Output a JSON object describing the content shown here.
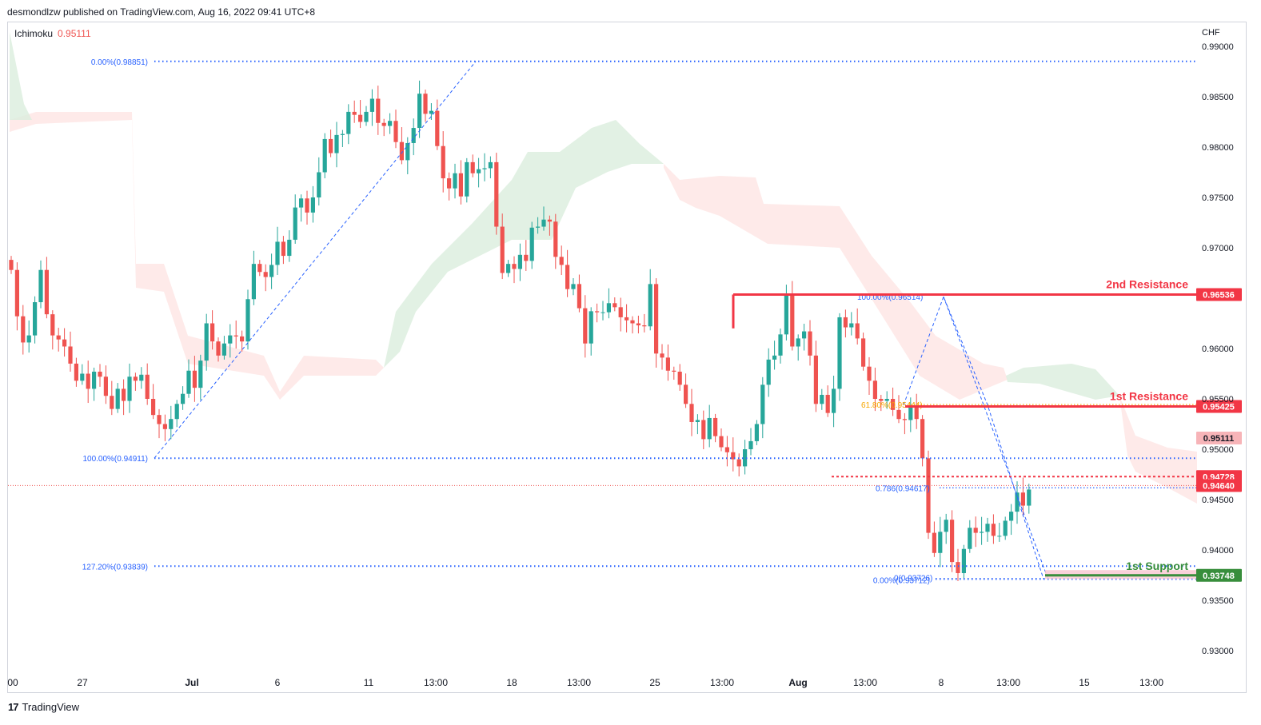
{
  "header": {
    "published": "desmondlzw published on TradingView.com, Aug 16, 2022 09:41 UTC+8",
    "indicator_name": "Ichimoku",
    "indicator_value": "0.95111",
    "currency": "CHF"
  },
  "footer": {
    "logo": "17",
    "brand": "TradingView"
  },
  "colors": {
    "up": "#26a69a",
    "down": "#ef5350",
    "cloud_bear": "#fde3e1",
    "cloud_bull": "#dbeedd",
    "fib": "#2962ff",
    "resistance": "#f23645",
    "support": "#388e3c",
    "fib_618": "#f7a600"
  },
  "chart_data": {
    "type": "candlestick",
    "symbol_currency": "CHF",
    "ylim": [
      0.9286,
      0.9912
    ],
    "yticks": [
      "0.99000",
      "0.98500",
      "0.98000",
      "0.97500",
      "0.97000",
      "0.96000",
      "0.95500",
      "0.95000",
      "0.94500",
      "0.94000",
      "0.93500",
      "0.93000"
    ],
    "xticks": [
      "00",
      "27",
      "Jul",
      "6",
      "11",
      "13:00",
      "18",
      "13:00",
      "25",
      "13:00",
      "Aug",
      "13:00",
      "8",
      "13:00",
      "15",
      "13:00"
    ],
    "closes": [
      0.9678,
      0.9632,
      0.9606,
      0.9613,
      0.9646,
      0.9678,
      0.9634,
      0.9613,
      0.9609,
      0.9602,
      0.9585,
      0.9568,
      0.9575,
      0.956,
      0.9577,
      0.9572,
      0.9553,
      0.954,
      0.956,
      0.9548,
      0.9572,
      0.9568,
      0.9574,
      0.955,
      0.9534,
      0.9525,
      0.952,
      0.953,
      0.9545,
      0.9555,
      0.9578,
      0.9561,
      0.9588,
      0.9625,
      0.9607,
      0.9593,
      0.9605,
      0.9613,
      0.9612,
      0.9607,
      0.9649,
      0.9684,
      0.9676,
      0.9671,
      0.9683,
      0.9706,
      0.9692,
      0.9708,
      0.974,
      0.9749,
      0.9735,
      0.975,
      0.9775,
      0.9808,
      0.9794,
      0.9812,
      0.9813,
      0.9835,
      0.9832,
      0.9825,
      0.9835,
      0.9848,
      0.9824,
      0.9821,
      0.9826,
      0.9805,
      0.9787,
      0.9804,
      0.9819,
      0.9853,
      0.9833,
      0.9836,
      0.9801,
      0.9769,
      0.9759,
      0.9774,
      0.9751,
      0.9785,
      0.9774,
      0.9778,
      0.9779,
      0.9785,
      0.9721,
      0.9675,
      0.9684,
      0.9679,
      0.9693,
      0.9687,
      0.972,
      0.9721,
      0.9728,
      0.9726,
      0.9691,
      0.9683,
      0.9659,
      0.9664,
      0.964,
      0.9605,
      0.9637,
      0.9636,
      0.9636,
      0.9645,
      0.9641,
      0.9631,
      0.9628,
      0.9625,
      0.9623,
      0.9622,
      0.9664,
      0.9595,
      0.9591,
      0.9578,
      0.9577,
      0.9564,
      0.9545,
      0.9527,
      0.9529,
      0.951,
      0.9531,
      0.9513,
      0.9502,
      0.9497,
      0.949,
      0.9483,
      0.95,
      0.9508,
      0.9525,
      0.9564,
      0.9589,
      0.9593,
      0.9614,
      0.9654,
      0.9602,
      0.961,
      0.9617,
      0.9593,
      0.9545,
      0.9554,
      0.9536,
      0.956,
      0.9631,
      0.9621,
      0.9625,
      0.961,
      0.9582,
      0.9568,
      0.955,
      0.9548,
      0.955,
      0.9539,
      0.953,
      0.9529,
      0.9542,
      0.953,
      0.9491,
      0.9417,
      0.9397,
      0.9418,
      0.943,
      0.9388,
      0.9377,
      0.9401,
      0.9422,
      0.9417,
      0.9418,
      0.9426,
      0.9414,
      0.9414,
      0.9429,
      0.9438,
      0.9457,
      0.9444,
      0.946
    ],
    "ichimoku_value": 0.95111,
    "price_labels": [
      {
        "label": "2nd Resistance",
        "value": 0.96536,
        "text": "0.96536"
      },
      {
        "label": "1st Resistance",
        "value": 0.95425,
        "text": "0.95425"
      },
      {
        "label": "",
        "value": 0.95111,
        "text": "0.95111"
      },
      {
        "label": "",
        "value": 0.94728,
        "text": "0.94728"
      },
      {
        "label": "",
        "value": 0.9464,
        "text": "0.94640"
      },
      {
        "label": "1st Support",
        "value": 0.93748,
        "text": "0.93748"
      }
    ],
    "fib_levels": [
      {
        "text": "0.00%(0.98851)",
        "value": 0.98851
      },
      {
        "text": "100.00%(0.94911)",
        "value": 0.94911
      },
      {
        "text": "127.20%(0.93839)",
        "value": 0.93839
      },
      {
        "text": "100.00%(0.96514)",
        "value": 0.96514
      },
      {
        "text": "61.80%(0.95444)",
        "value": 0.95444
      },
      {
        "text": "0.786(0.94617)",
        "value": 0.94617
      },
      {
        "text": "0(0.93726)",
        "value": 0.93726
      },
      {
        "text": "0.00%(0.93712)",
        "value": 0.93712
      }
    ]
  }
}
